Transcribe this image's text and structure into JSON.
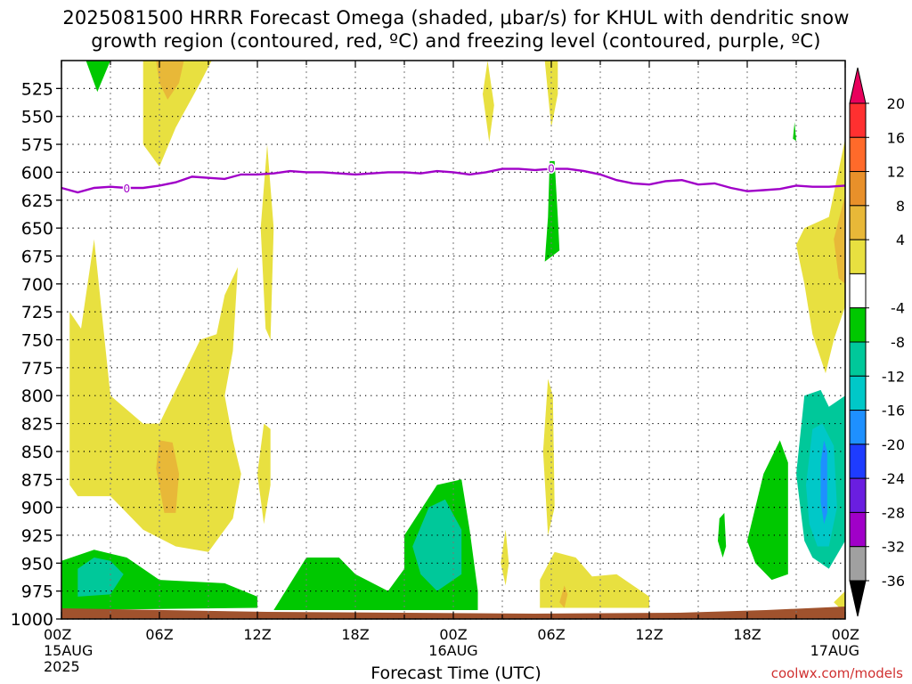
{
  "header": {
    "title_line1": "2025081500 HRRR Forecast Omega (shaded, μbar/s) for KHUL with dendritic snow",
    "title_line2": "growth region (contoured, red, ºC) and freezing level (contoured, purple, ºC)"
  },
  "footer": {
    "x_axis_title": "Forecast Time (UTC)",
    "credit": "coolwx.com/models"
  },
  "chart_data": {
    "type": "heatmap",
    "title": "2025081500 HRRR Forecast Omega (shaded, μbar/s) for KHUL with dendritic snow growth region (contoured, red, ºC) and freezing level (contoured, purple, ºC)",
    "xlabel": "Forecast Time (UTC)",
    "ylabel": "",
    "x_range_hours": [
      0,
      48
    ],
    "y_range_hpa": [
      1000,
      500
    ],
    "y_ticks": [
      "525",
      "550",
      "575",
      "600",
      "625",
      "650",
      "675",
      "700",
      "725",
      "750",
      "775",
      "800",
      "825",
      "850",
      "875",
      "900",
      "925",
      "950",
      "975",
      "1000"
    ],
    "x_ticks": [
      {
        "hour": 0,
        "label": "00Z",
        "sub1": "15AUG",
        "sub2": "2025"
      },
      {
        "hour": 6,
        "label": "06Z",
        "sub1": "",
        "sub2": ""
      },
      {
        "hour": 12,
        "label": "12Z",
        "sub1": "",
        "sub2": ""
      },
      {
        "hour": 18,
        "label": "18Z",
        "sub1": "",
        "sub2": ""
      },
      {
        "hour": 24,
        "label": "00Z",
        "sub1": "16AUG",
        "sub2": ""
      },
      {
        "hour": 30,
        "label": "06Z",
        "sub1": "",
        "sub2": ""
      },
      {
        "hour": 36,
        "label": "12Z",
        "sub1": "",
        "sub2": ""
      },
      {
        "hour": 42,
        "label": "18Z",
        "sub1": "",
        "sub2": ""
      },
      {
        "hour": 48,
        "label": "00Z",
        "sub1": "17AUG",
        "sub2": ""
      }
    ],
    "grid": true,
    "colorbar": {
      "labels": [
        "20",
        "16",
        "12",
        "8",
        "4",
        "-4",
        "-8",
        "-12",
        "-16",
        "-20",
        "-24",
        "-28",
        "-32",
        "-36"
      ],
      "colors": [
        "#e8005c",
        "#ff3030",
        "#ff6a2a",
        "#e8902a",
        "#e8b838",
        "#e8e040",
        "#ffffff",
        "#00c800",
        "#00c89a",
        "#00c8c8",
        "#1e90ff",
        "#1e3cff",
        "#6a1ee0",
        "#a000c8",
        "#a0a0a0",
        "#000000"
      ]
    },
    "freezing_level": {
      "label": "0",
      "color": "#a000c8",
      "points": [
        [
          0,
          614
        ],
        [
          1,
          618
        ],
        [
          2,
          614
        ],
        [
          3,
          613
        ],
        [
          4,
          614
        ],
        [
          5,
          614
        ],
        [
          6,
          612
        ],
        [
          7,
          609
        ],
        [
          8,
          604
        ],
        [
          9,
          605
        ],
        [
          10,
          606
        ],
        [
          11,
          602
        ],
        [
          12,
          602
        ],
        [
          13,
          601
        ],
        [
          14,
          599
        ],
        [
          15,
          600
        ],
        [
          16,
          600
        ],
        [
          17,
          601
        ],
        [
          18,
          602
        ],
        [
          19,
          601
        ],
        [
          20,
          600
        ],
        [
          21,
          600
        ],
        [
          22,
          601
        ],
        [
          23,
          599
        ],
        [
          24,
          600
        ],
        [
          25,
          602
        ],
        [
          26,
          600
        ],
        [
          27,
          597
        ],
        [
          28,
          597
        ],
        [
          29,
          598
        ],
        [
          30,
          597
        ],
        [
          31,
          597
        ],
        [
          32,
          599
        ],
        [
          33,
          602
        ],
        [
          34,
          607
        ],
        [
          35,
          610
        ],
        [
          36,
          611
        ],
        [
          37,
          608
        ],
        [
          38,
          607
        ],
        [
          39,
          611
        ],
        [
          40,
          610
        ],
        [
          41,
          614
        ],
        [
          42,
          617
        ],
        [
          43,
          616
        ],
        [
          44,
          615
        ],
        [
          45,
          612
        ],
        [
          46,
          613
        ],
        [
          47,
          613
        ],
        [
          48,
          612
        ]
      ]
    },
    "shaded_regions": [
      {
        "name": "upward-motion-0-4z-975",
        "level": "-4",
        "points": [
          [
            0,
            948
          ],
          [
            2,
            938
          ],
          [
            4,
            945
          ],
          [
            6,
            965
          ],
          [
            10,
            968
          ],
          [
            12,
            980
          ],
          [
            12,
            990
          ],
          [
            0,
            992
          ]
        ]
      },
      {
        "name": "upward-motion-1-3z-965",
        "level": "-8",
        "points": [
          [
            1,
            955
          ],
          [
            2,
            945
          ],
          [
            3,
            948
          ],
          [
            3.8,
            960
          ],
          [
            3,
            978
          ],
          [
            1,
            980
          ]
        ]
      },
      {
        "name": "upward-motion-13-28z-975",
        "level": "-4",
        "points": [
          [
            13,
            992
          ],
          [
            15,
            945
          ],
          [
            17,
            945
          ],
          [
            18,
            960
          ],
          [
            20,
            975
          ],
          [
            21,
            955
          ],
          [
            21,
            925
          ],
          [
            23,
            880
          ],
          [
            24.5,
            875
          ],
          [
            25,
            920
          ],
          [
            25.5,
            975
          ],
          [
            25.5,
            992
          ]
        ]
      },
      {
        "name": "upward-motion-21-25z-930",
        "level": "-8",
        "points": [
          [
            21.5,
            935
          ],
          [
            22.5,
            900
          ],
          [
            23.5,
            893
          ],
          [
            24.5,
            920
          ],
          [
            24.5,
            960
          ],
          [
            23,
            975
          ],
          [
            22,
            960
          ]
        ]
      },
      {
        "name": "upward-motion-29-30z-650",
        "level": "-4",
        "points": [
          [
            29.6,
            680
          ],
          [
            29.8,
            640
          ],
          [
            29.9,
            590
          ],
          [
            30.2,
            590
          ],
          [
            30.4,
            640
          ],
          [
            30.5,
            670
          ]
        ]
      },
      {
        "name": "upward-motion-40-41z-920",
        "level": "-4",
        "points": [
          [
            40.2,
            930
          ],
          [
            40.3,
            910
          ],
          [
            40.6,
            905
          ],
          [
            40.7,
            935
          ],
          [
            40.5,
            945
          ]
        ]
      },
      {
        "name": "upward-motion-42-45z-910",
        "level": "-4",
        "points": [
          [
            42,
            930
          ],
          [
            43,
            870
          ],
          [
            44,
            840
          ],
          [
            44.5,
            860
          ],
          [
            44.5,
            960
          ],
          [
            43.5,
            965
          ],
          [
            42.5,
            950
          ]
        ]
      },
      {
        "name": "upward-motion-45-48z-870",
        "level": "-8",
        "points": [
          [
            45,
            870
          ],
          [
            45.5,
            800
          ],
          [
            46.5,
            795
          ],
          [
            47,
            810
          ],
          [
            48,
            800
          ],
          [
            48,
            930
          ],
          [
            47,
            955
          ],
          [
            46,
            945
          ],
          [
            45.5,
            930
          ]
        ]
      },
      {
        "name": "upward-motion-45.5-47.5z-870",
        "level": "-12",
        "points": [
          [
            45.6,
            880
          ],
          [
            46,
            830
          ],
          [
            46.6,
            825
          ],
          [
            47.3,
            845
          ],
          [
            47.5,
            900
          ],
          [
            47,
            935
          ],
          [
            46.3,
            935
          ],
          [
            45.8,
            915
          ]
        ]
      },
      {
        "name": "upward-motion-46.5z-870",
        "level": "-16",
        "points": [
          [
            46.5,
            860
          ],
          [
            46.7,
            840
          ],
          [
            46.9,
            850
          ],
          [
            46.9,
            905
          ],
          [
            46.7,
            915
          ],
          [
            46.5,
            895
          ]
        ]
      },
      {
        "name": "upward-motion-45z-575",
        "level": "-4",
        "points": [
          [
            44.8,
            570
          ],
          [
            44.9,
            555
          ],
          [
            45,
            572
          ]
        ]
      },
      {
        "name": "upward-motion-1-2z-530",
        "level": "-4",
        "points": [
          [
            1.5,
            500
          ],
          [
            3,
            500
          ],
          [
            2.2,
            528
          ]
        ]
      },
      {
        "name": "sinking-motion-0-11z-800",
        "level": "4",
        "points": [
          [
            0.5,
            880
          ],
          [
            0.5,
            725
          ],
          [
            1.2,
            740
          ],
          [
            2,
            660
          ],
          [
            3,
            800
          ],
          [
            5,
            825
          ],
          [
            6,
            825
          ],
          [
            8.5,
            750
          ],
          [
            9.5,
            745
          ],
          [
            10,
            710
          ],
          [
            10.8,
            685
          ],
          [
            10.5,
            760
          ],
          [
            10,
            800
          ],
          [
            10.5,
            840
          ],
          [
            11,
            870
          ],
          [
            10.5,
            910
          ],
          [
            9,
            940
          ],
          [
            7,
            935
          ],
          [
            5,
            920
          ],
          [
            3,
            890
          ],
          [
            1,
            890
          ]
        ]
      },
      {
        "name": "sinking-motion-5-7z-870",
        "level": "8",
        "points": [
          [
            5.8,
            865
          ],
          [
            6,
            840
          ],
          [
            6.8,
            842
          ],
          [
            7.2,
            870
          ],
          [
            7,
            905
          ],
          [
            6.3,
            905
          ]
        ]
      },
      {
        "name": "sinking-motion-5-9z-550",
        "level": "4",
        "points": [
          [
            5,
            500
          ],
          [
            9.2,
            500
          ],
          [
            8.5,
            520
          ],
          [
            7,
            560
          ],
          [
            6,
            595
          ],
          [
            5,
            575
          ]
        ]
      },
      {
        "name": "sinking-motion-6-7z-520",
        "level": "8",
        "points": [
          [
            5.8,
            500
          ],
          [
            7.5,
            500
          ],
          [
            7.2,
            520
          ],
          [
            6.5,
            535
          ],
          [
            6,
            520
          ]
        ]
      },
      {
        "name": "sinking-motion-12-13z-860",
        "level": "4",
        "points": [
          [
            12,
            870
          ],
          [
            12.4,
            825
          ],
          [
            12.8,
            830
          ],
          [
            12.8,
            880
          ],
          [
            12.4,
            915
          ]
        ]
      },
      {
        "name": "sinking-motion-12z-600",
        "level": "4",
        "points": [
          [
            12.2,
            650
          ],
          [
            12.6,
            575
          ],
          [
            13,
            650
          ],
          [
            12.8,
            750
          ],
          [
            12.5,
            740
          ]
        ]
      },
      {
        "name": "sinking-motion-26z-520",
        "level": "4",
        "points": [
          [
            25.8,
            530
          ],
          [
            26.1,
            500
          ],
          [
            26.5,
            540
          ],
          [
            26.2,
            573
          ]
        ]
      },
      {
        "name": "sinking-motion-29-33z-970",
        "level": "4",
        "points": [
          [
            29.3,
            990
          ],
          [
            29.3,
            965
          ],
          [
            30.2,
            940
          ],
          [
            31.5,
            945
          ],
          [
            32.5,
            962
          ],
          [
            34,
            960
          ],
          [
            36,
            980
          ],
          [
            36,
            990
          ]
        ]
      },
      {
        "name": "sinking-motion-30-31z-980",
        "level": "8",
        "points": [
          [
            30.5,
            985
          ],
          [
            30.8,
            970
          ],
          [
            31,
            978
          ],
          [
            30.8,
            990
          ]
        ]
      },
      {
        "name": "sinking-motion-29-30z-830",
        "level": "4",
        "points": [
          [
            29.5,
            850
          ],
          [
            29.8,
            785
          ],
          [
            30.1,
            800
          ],
          [
            30.2,
            900
          ],
          [
            29.8,
            925
          ]
        ]
      },
      {
        "name": "sinking-motion-27z-940",
        "level": "4",
        "points": [
          [
            26.9,
            950
          ],
          [
            27.2,
            920
          ],
          [
            27.4,
            950
          ],
          [
            27.2,
            970
          ]
        ]
      },
      {
        "name": "sinking-motion-30z-520",
        "level": "4",
        "points": [
          [
            29.6,
            500
          ],
          [
            30.4,
            500
          ],
          [
            30.4,
            530
          ],
          [
            30,
            560
          ]
        ]
      },
      {
        "name": "sinking-motion-45-48z-680",
        "level": "4",
        "points": [
          [
            45,
            665
          ],
          [
            45.5,
            650
          ],
          [
            47,
            640
          ],
          [
            48,
            570
          ],
          [
            48,
            720
          ],
          [
            47.3,
            750
          ],
          [
            46.8,
            780
          ],
          [
            46,
            745
          ],
          [
            45.5,
            700
          ]
        ]
      },
      {
        "name": "sinking-motion-47-48z-650",
        "level": "8",
        "points": [
          [
            47.3,
            660
          ],
          [
            48,
            620
          ],
          [
            48,
            700
          ],
          [
            47.6,
            695
          ]
        ]
      },
      {
        "name": "sinking-motion-48z-990",
        "level": "4",
        "points": [
          [
            47.3,
            985
          ],
          [
            48,
            975
          ],
          [
            48,
            995
          ]
        ]
      }
    ],
    "surface_band": {
      "name": "terrain",
      "color": "#a0522d"
    }
  }
}
